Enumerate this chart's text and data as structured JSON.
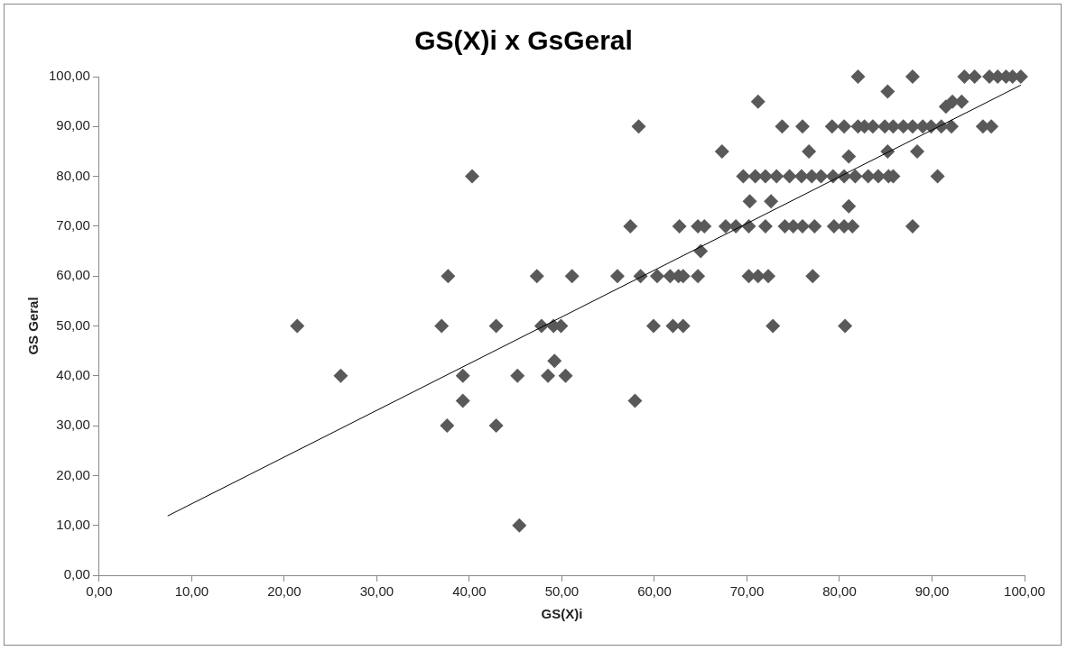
{
  "chart_data": {
    "type": "scatter",
    "title": "GS(X)i x GsGeral",
    "xlabel": "GS(X)i",
    "ylabel": "GS Geral",
    "xlim": [
      0,
      100
    ],
    "ylim": [
      0,
      100
    ],
    "xticks": [
      {
        "value": 0,
        "label": "0,00"
      },
      {
        "value": 10,
        "label": "10,00"
      },
      {
        "value": 20,
        "label": "20,00"
      },
      {
        "value": 30,
        "label": "30,00"
      },
      {
        "value": 40,
        "label": "40,00"
      },
      {
        "value": 50,
        "label": "50,00"
      },
      {
        "value": 60,
        "label": "60,00"
      },
      {
        "value": 70,
        "label": "70,00"
      },
      {
        "value": 80,
        "label": "80,00"
      },
      {
        "value": 90,
        "label": "90,00"
      },
      {
        "value": 100,
        "label": "100,00"
      }
    ],
    "yticks": [
      {
        "value": 0,
        "label": "0,00"
      },
      {
        "value": 10,
        "label": "10,00"
      },
      {
        "value": 20,
        "label": "20,00"
      },
      {
        "value": 30,
        "label": "30,00"
      },
      {
        "value": 40,
        "label": "40,00"
      },
      {
        "value": 50,
        "label": "50,00"
      },
      {
        "value": 60,
        "label": "60,00"
      },
      {
        "value": 70,
        "label": "70,00"
      },
      {
        "value": 80,
        "label": "80,00"
      },
      {
        "value": 90,
        "label": "90,00"
      },
      {
        "value": 100,
        "label": "100,00"
      }
    ],
    "series": [
      {
        "type": "scatter",
        "color": "#595959",
        "marker": "diamond",
        "x": [
          21.4,
          26.1,
          37.0,
          37.7,
          37.6,
          39.3,
          39.3,
          40.3,
          42.9,
          42.9,
          45.2,
          45.4,
          47.3,
          47.8,
          48.5,
          49.1,
          49.2,
          49.9,
          50.4,
          51.1,
          56.0,
          58.5,
          60.3,
          61.7,
          62.6,
          63.1,
          64.7,
          70.2,
          71.2,
          72.3,
          77.1,
          59.9,
          62.0,
          63.1,
          72.8,
          80.6,
          57.9,
          65.0,
          57.4,
          62.7,
          64.7,
          65.4,
          67.7,
          68.8,
          70.2,
          72.0,
          74.1,
          75.0,
          76.0,
          77.3,
          79.4,
          80.5,
          81.4,
          87.9,
          70.3,
          72.6,
          81.0,
          69.6,
          70.9,
          72.0,
          73.2,
          74.6,
          75.9,
          77.0,
          78.0,
          79.3,
          80.5,
          81.7,
          83.1,
          84.2,
          85.3,
          85.8,
          90.6,
          67.3,
          76.7,
          81.0,
          85.2,
          88.4,
          58.3,
          73.8,
          76.0,
          79.2,
          80.5,
          82.0,
          82.7,
          83.6,
          84.9,
          85.8,
          86.9,
          87.9,
          89.0,
          89.9,
          91.0,
          92.1,
          95.5,
          96.4,
          71.2,
          91.5,
          92.2,
          93.2,
          85.2,
          82.0,
          87.9,
          93.5,
          94.6,
          96.2,
          97.1,
          98.0,
          98.7,
          99.6
        ],
        "values": [
          50,
          40,
          50,
          60,
          30,
          40,
          35,
          80,
          50,
          30,
          40,
          10,
          60,
          50,
          40,
          50,
          43,
          50,
          40,
          60,
          60,
          60,
          60,
          60,
          60,
          60,
          60,
          60,
          60,
          60,
          60,
          50,
          50,
          50,
          50,
          50,
          35,
          65,
          70,
          70,
          70,
          70,
          70,
          70,
          70,
          70,
          70,
          70,
          70,
          70,
          70,
          70,
          70,
          70,
          75,
          75,
          74,
          80,
          80,
          80,
          80,
          80,
          80,
          80,
          80,
          80,
          80,
          80,
          80,
          80,
          80,
          80,
          80,
          85,
          85,
          84,
          85,
          85,
          90,
          90,
          90,
          90,
          90,
          90,
          90,
          90,
          90,
          90,
          90,
          90,
          90,
          90,
          90,
          90,
          90,
          90,
          95,
          94,
          95,
          95,
          97,
          100,
          100,
          100,
          100,
          100,
          100,
          100,
          100,
          100
        ]
      },
      {
        "type": "line",
        "color": "#000000",
        "marker": "none",
        "x": [
          7.4,
          99.6
        ],
        "values": [
          11.9,
          98.3
        ]
      }
    ]
  }
}
